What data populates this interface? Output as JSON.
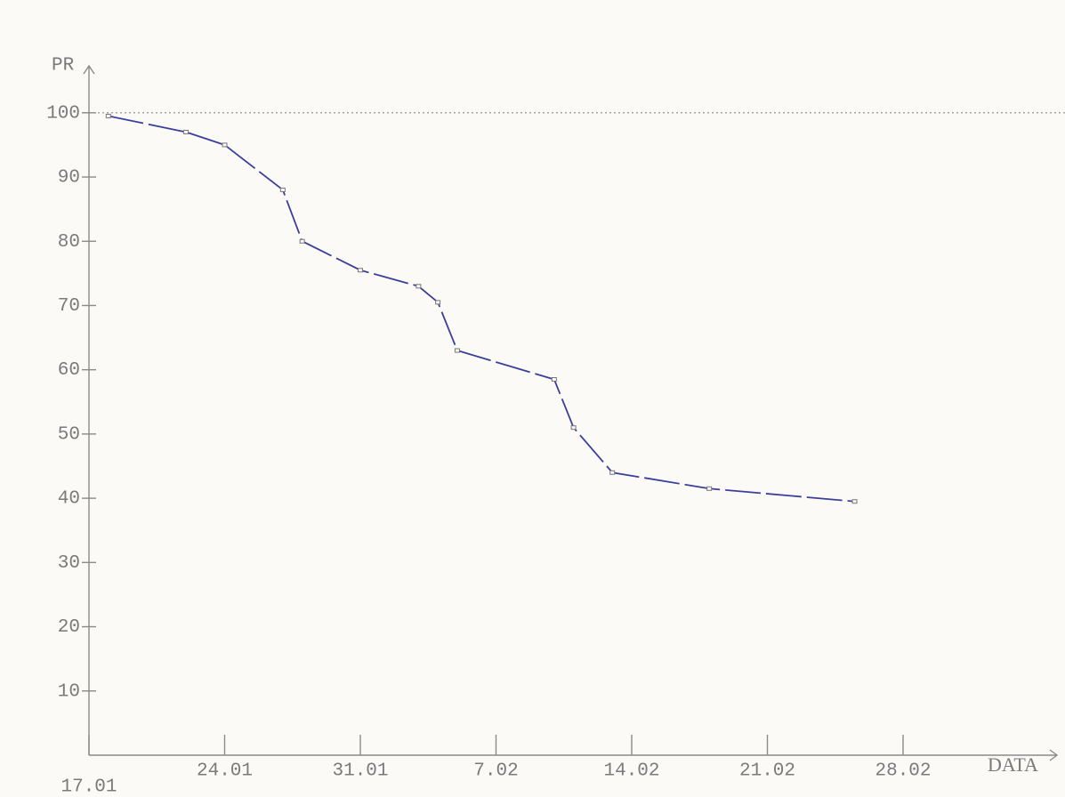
{
  "chart_data": {
    "type": "line",
    "ylabel": "PR",
    "xlabel": "DATA",
    "x": [
      18,
      22,
      24,
      27,
      28,
      31,
      34,
      35,
      36,
      41,
      42,
      44,
      49,
      56.5
    ],
    "values": [
      99.5,
      97,
      95,
      88,
      80,
      75.5,
      73,
      70.5,
      63,
      58.5,
      51,
      44,
      41.5,
      39.5
    ],
    "color": "#3b3f9c",
    "xlim": [
      17,
      67
    ],
    "xticks": [
      {
        "value": 17,
        "label": "17.01"
      },
      {
        "value": 24,
        "label": "24.01"
      },
      {
        "value": 31,
        "label": "31.01"
      },
      {
        "value": 38,
        "label": "7.02"
      },
      {
        "value": 45,
        "label": "14.02"
      },
      {
        "value": 52,
        "label": "21.02"
      },
      {
        "value": 59,
        "label": "28.02"
      }
    ],
    "ylim": [
      0,
      106
    ],
    "yticks": [
      10,
      20,
      30,
      40,
      50,
      60,
      70,
      80,
      90,
      100
    ],
    "reference_line": 100
  }
}
